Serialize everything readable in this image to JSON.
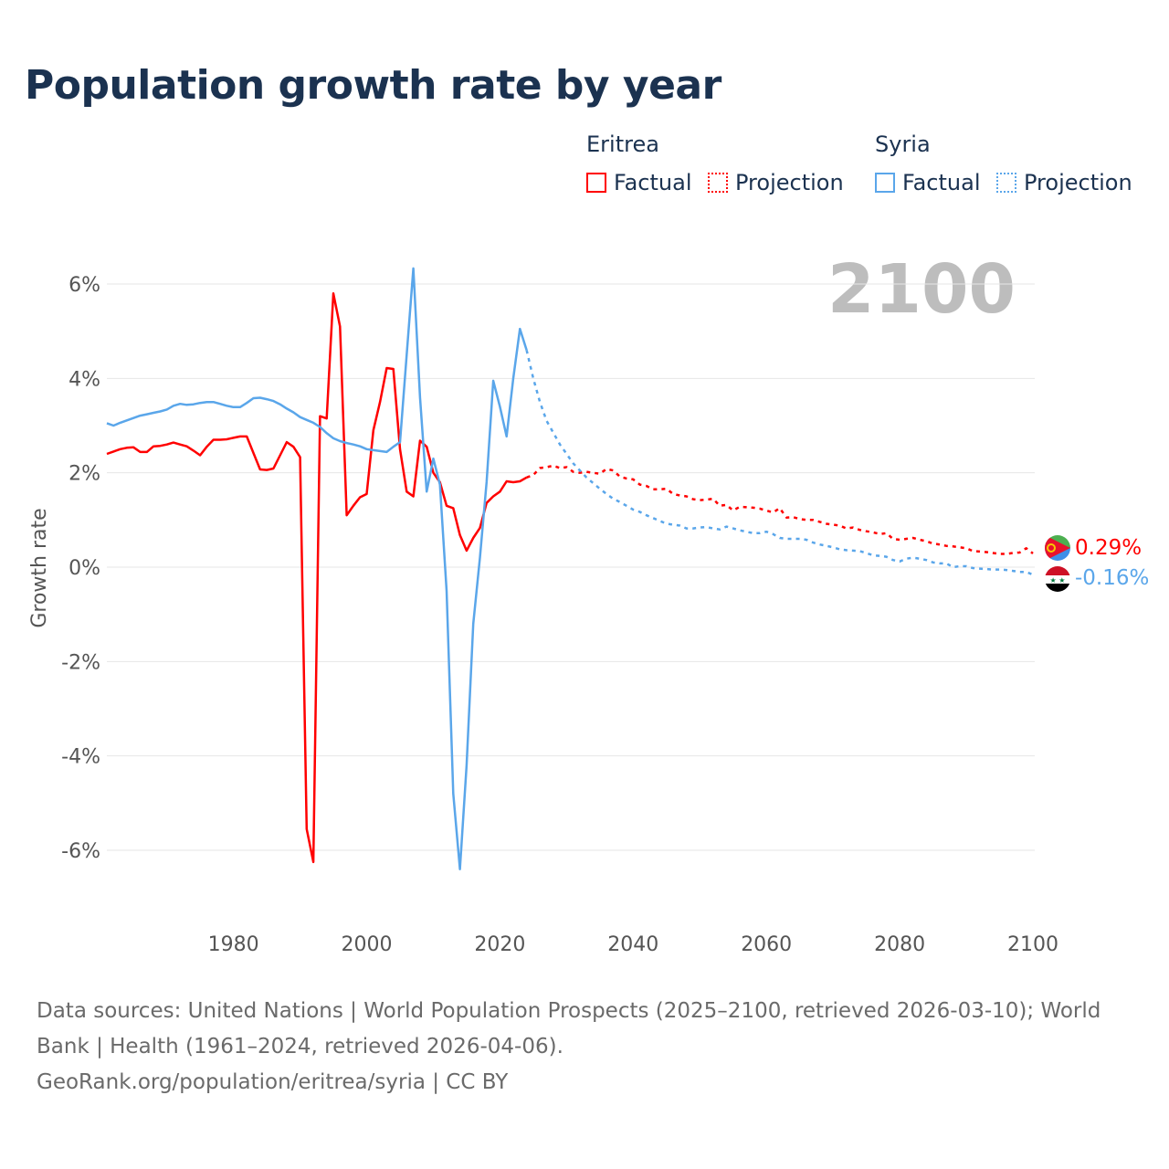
{
  "title": "Population growth rate by year",
  "legend": [
    {
      "country": "Eritrea",
      "factual": "Factual",
      "projection": "Projection",
      "color": "#ff0000"
    },
    {
      "country": "Syria",
      "factual": "Factual",
      "projection": "Projection",
      "color": "#5aa6ea"
    }
  ],
  "year_overlay": "2100",
  "end_labels": {
    "eritrea": "0.29%",
    "syria": "-0.16%"
  },
  "footer": {
    "sources": "Data sources: United Nations | World Population Prospects (2025–2100, retrieved 2026-03-10); World Bank | Health (1961–2024, retrieved 2026-04-06).",
    "credit": "GeoRank.org/population/eritrea/syria | CC BY"
  },
  "chart_data": {
    "type": "line",
    "title": "Population growth rate by year",
    "ylabel": "Growth rate",
    "xlabel": "",
    "xlim": [
      1961,
      2100
    ],
    "ylim": [
      -6.5,
      6.5
    ],
    "x_ticks": [
      1980,
      2000,
      2020,
      2040,
      2060,
      2080,
      2100
    ],
    "y_ticks": [
      6,
      4,
      2,
      0,
      -2,
      -4,
      -6
    ],
    "y_tick_labels": [
      "6%",
      "4%",
      "2%",
      "0%",
      "-2%",
      "-4%",
      "-6%"
    ],
    "grid": true,
    "legend_position": "top-right",
    "series": [
      {
        "name": "Eritrea Factual",
        "start_year": 1961,
        "values": [
          2.4,
          2.45,
          2.5,
          2.53,
          2.54,
          2.44,
          2.44,
          2.56,
          2.57,
          2.6,
          2.64,
          2.6,
          2.56,
          2.47,
          2.37,
          2.55,
          2.7,
          2.7,
          2.71,
          2.74,
          2.77,
          2.77,
          2.42,
          2.07,
          2.06,
          2.09,
          2.37,
          2.65,
          2.55,
          2.33,
          -5.55,
          -6.25,
          3.2,
          3.15,
          5.8,
          5.1,
          1.1,
          1.3,
          1.48,
          1.55,
          2.9,
          3.5,
          4.22,
          4.2,
          2.5,
          1.6,
          1.5,
          2.68,
          2.55,
          2.0,
          1.8,
          1.3,
          1.25,
          0.68,
          0.35,
          0.62,
          0.83,
          1.36,
          1.5,
          1.6,
          1.82,
          1.8,
          1.82,
          1.9
        ]
      },
      {
        "name": "Eritrea Projection",
        "start_year": 2024,
        "values": [
          1.9,
          1.95,
          2.1,
          2.12,
          2.15,
          2.1,
          2.12,
          2.02,
          2.0,
          2.02,
          2.0,
          1.98,
          2.08,
          2.05,
          1.92,
          1.88,
          1.86,
          1.75,
          1.72,
          1.65,
          1.65,
          1.66,
          1.55,
          1.52,
          1.5,
          1.44,
          1.42,
          1.43,
          1.45,
          1.3,
          1.32,
          1.2,
          1.28,
          1.27,
          1.26,
          1.24,
          1.2,
          1.16,
          1.25,
          1.05,
          1.06,
          1.02,
          1.0,
          1.0,
          0.96,
          0.92,
          0.9,
          0.88,
          0.82,
          0.84,
          0.79,
          0.76,
          0.74,
          0.7,
          0.72,
          0.6,
          0.58,
          0.6,
          0.62,
          0.58,
          0.55,
          0.5,
          0.48,
          0.45,
          0.44,
          0.42,
          0.4,
          0.34,
          0.33,
          0.32,
          0.3,
          0.28,
          0.28,
          0.3,
          0.31,
          0.4,
          0.29
        ]
      },
      {
        "name": "Syria Factual",
        "start_year": 1961,
        "values": [
          3.05,
          3.0,
          3.06,
          3.11,
          3.16,
          3.21,
          3.24,
          3.27,
          3.3,
          3.34,
          3.42,
          3.46,
          3.44,
          3.45,
          3.48,
          3.5,
          3.5,
          3.46,
          3.42,
          3.39,
          3.39,
          3.48,
          3.58,
          3.59,
          3.56,
          3.52,
          3.45,
          3.36,
          3.28,
          3.18,
          3.12,
          3.06,
          2.97,
          2.84,
          2.73,
          2.67,
          2.63,
          2.6,
          2.56,
          2.5,
          2.48,
          2.46,
          2.44,
          2.55,
          2.65,
          4.5,
          6.33,
          3.6,
          1.6,
          2.3,
          1.75,
          -0.5,
          -4.8,
          -6.4,
          -4.2,
          -1.2,
          0.2,
          1.8,
          3.95,
          3.4,
          2.77,
          4.0,
          5.05,
          4.6
        ]
      },
      {
        "name": "Syria Projection",
        "start_year": 2024,
        "values": [
          4.6,
          4.0,
          3.5,
          3.1,
          2.85,
          2.6,
          2.4,
          2.2,
          2.05,
          1.9,
          1.78,
          1.66,
          1.55,
          1.45,
          1.38,
          1.3,
          1.22,
          1.17,
          1.1,
          1.04,
          0.98,
          0.92,
          0.9,
          0.88,
          0.82,
          0.82,
          0.84,
          0.85,
          0.82,
          0.8,
          0.86,
          0.82,
          0.78,
          0.75,
          0.72,
          0.72,
          0.75,
          0.7,
          0.62,
          0.6,
          0.6,
          0.6,
          0.58,
          0.52,
          0.48,
          0.45,
          0.42,
          0.38,
          0.36,
          0.35,
          0.34,
          0.3,
          0.25,
          0.24,
          0.22,
          0.15,
          0.12,
          0.18,
          0.2,
          0.18,
          0.15,
          0.1,
          0.08,
          0.08,
          0.0,
          0.02,
          0.02,
          -0.02,
          -0.03,
          -0.04,
          -0.05,
          -0.05,
          -0.06,
          -0.08,
          -0.1,
          -0.1,
          -0.16
        ]
      }
    ]
  }
}
